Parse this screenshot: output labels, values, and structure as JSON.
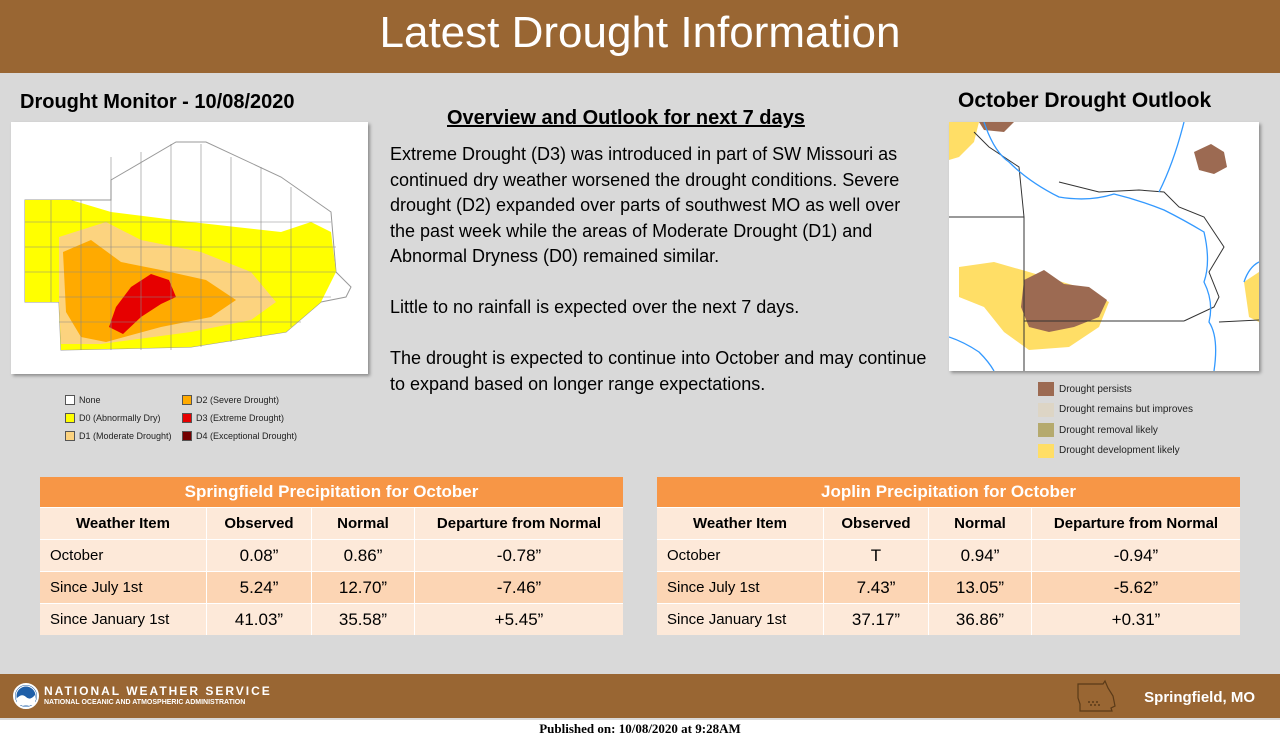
{
  "header": {
    "title": "Latest Drought Information"
  },
  "drought_monitor": {
    "title": "Drought Monitor - 10/08/2020",
    "legend": [
      {
        "label": "None",
        "color": "#ffffff"
      },
      {
        "label": "D0 (Abnormally Dry)",
        "color": "#ffff00"
      },
      {
        "label": "D1 (Moderate Drought)",
        "color": "#fcd37f"
      },
      {
        "label": "D2 (Severe Drought)",
        "color": "#ffaa00"
      },
      {
        "label": "D3 (Extreme Drought)",
        "color": "#e60000"
      },
      {
        "label": "D4 (Exceptional Drought)",
        "color": "#730000"
      }
    ]
  },
  "overview": {
    "title": "Overview and Outlook for next 7 days",
    "paragraphs": [
      "Extreme Drought (D3) was introduced in part of SW Missouri as continued dry weather worsened the drought conditions. Severe drought (D2) expanded over parts of southwest MO as well over the past week while the areas of Moderate Drought (D1) and Abnormal Dryness (D0) remained similar.",
      "Little to no rainfall is expected over the next 7 days.",
      "The drought is expected to continue into October and may continue to expand based on longer range expectations."
    ]
  },
  "outlook": {
    "title": "October Drought Outlook",
    "legend": [
      {
        "label": "Drought persists",
        "color": "#9c6a52"
      },
      {
        "label": "Drought remains but improves",
        "color": "#ddd5c5"
      },
      {
        "label": "Drought removal likely",
        "color": "#b5aa6e"
      },
      {
        "label": "Drought development likely",
        "color": "#ffde66"
      }
    ]
  },
  "tables": [
    {
      "title": "Springfield Precipitation for October",
      "headers": [
        "Weather Item",
        "Observed",
        "Normal",
        "Departure from Normal"
      ],
      "rows": [
        [
          "October",
          "0.08”",
          "0.86”",
          "-0.78”"
        ],
        [
          "Since July 1st",
          "5.24”",
          "12.70”",
          "-7.46”"
        ],
        [
          "Since January 1st",
          "41.03”",
          "35.58”",
          "+5.45”"
        ]
      ]
    },
    {
      "title": "Joplin Precipitation for October",
      "headers": [
        "Weather Item",
        "Observed",
        "Normal",
        "Departure from Normal"
      ],
      "rows": [
        [
          "October",
          "T",
          "0.94”",
          "-0.94”"
        ],
        [
          "Since July 1st",
          "7.43”",
          "13.05”",
          "-5.62”"
        ],
        [
          "Since January 1st",
          "37.17”",
          "36.86”",
          "+0.31”"
        ]
      ]
    }
  ],
  "footer": {
    "agency": "NATIONAL WEATHER SERVICE",
    "agency_sub": "NATIONAL OCEANIC AND ATMOSPHERIC ADMINISTRATION",
    "office": "Springfield, MO",
    "logo_text": "NOAA"
  },
  "published": "Published on: 10/08/2020 at 9:28AM"
}
